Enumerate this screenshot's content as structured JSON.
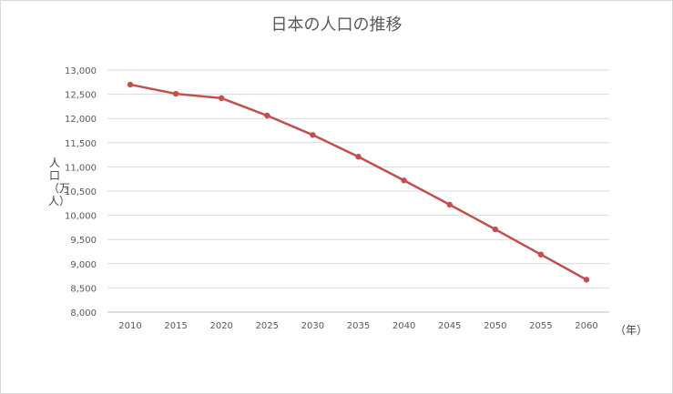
{
  "chart_data": {
    "type": "line",
    "title": "日本の人口の推移",
    "xlabel": "（年）",
    "ylabel": "人口（万人）",
    "x": [
      "2010",
      "2015",
      "2020",
      "2025",
      "2030",
      "2035",
      "2040",
      "2045",
      "2050",
      "2055",
      "2060"
    ],
    "series": [
      {
        "values": [
          12700,
          12510,
          12420,
          12060,
          11660,
          11210,
          10720,
          10220,
          9710,
          9190,
          8670
        ],
        "color": "#c0504d"
      }
    ],
    "ylim": [
      8000,
      13000
    ],
    "yticks": [
      "8,000",
      "8,500",
      "9,000",
      "9,500",
      "10,000",
      "10,500",
      "11,000",
      "11,500",
      "12,000",
      "12,500",
      "13,000"
    ],
    "grid": true,
    "legend": "none"
  }
}
